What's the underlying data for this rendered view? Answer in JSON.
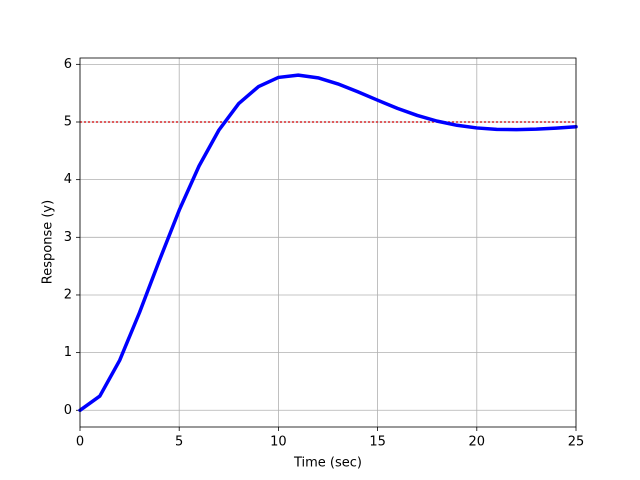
{
  "chart_data": {
    "type": "line",
    "x_label": "Time (sec)",
    "y_label": "Response (y)",
    "x": [
      0,
      1,
      2,
      3,
      4,
      5,
      6,
      7,
      8,
      9,
      10,
      11,
      12,
      13,
      14,
      15,
      16,
      17,
      18,
      19,
      20,
      21,
      22,
      23,
      24,
      25
    ],
    "series": [
      {
        "color": "#0000ff",
        "values": [
          0,
          0.247,
          0.867,
          1.696,
          2.598,
          3.47,
          4.237,
          4.859,
          5.319,
          5.615,
          5.773,
          5.813,
          5.766,
          5.661,
          5.524,
          5.378,
          5.236,
          5.114,
          5.015,
          4.943,
          4.897,
          4.873,
          4.868,
          4.877,
          4.894,
          4.917
        ]
      }
    ],
    "hline": {
      "value": 5,
      "color": "#d62728"
    },
    "xlim": [
      0,
      25
    ],
    "ylim": [
      -0.29,
      6.11
    ],
    "xticks": [
      0,
      5,
      10,
      15,
      20,
      25
    ],
    "yticks": [
      0,
      1,
      2,
      3,
      4,
      5,
      6
    ],
    "grid": true
  }
}
